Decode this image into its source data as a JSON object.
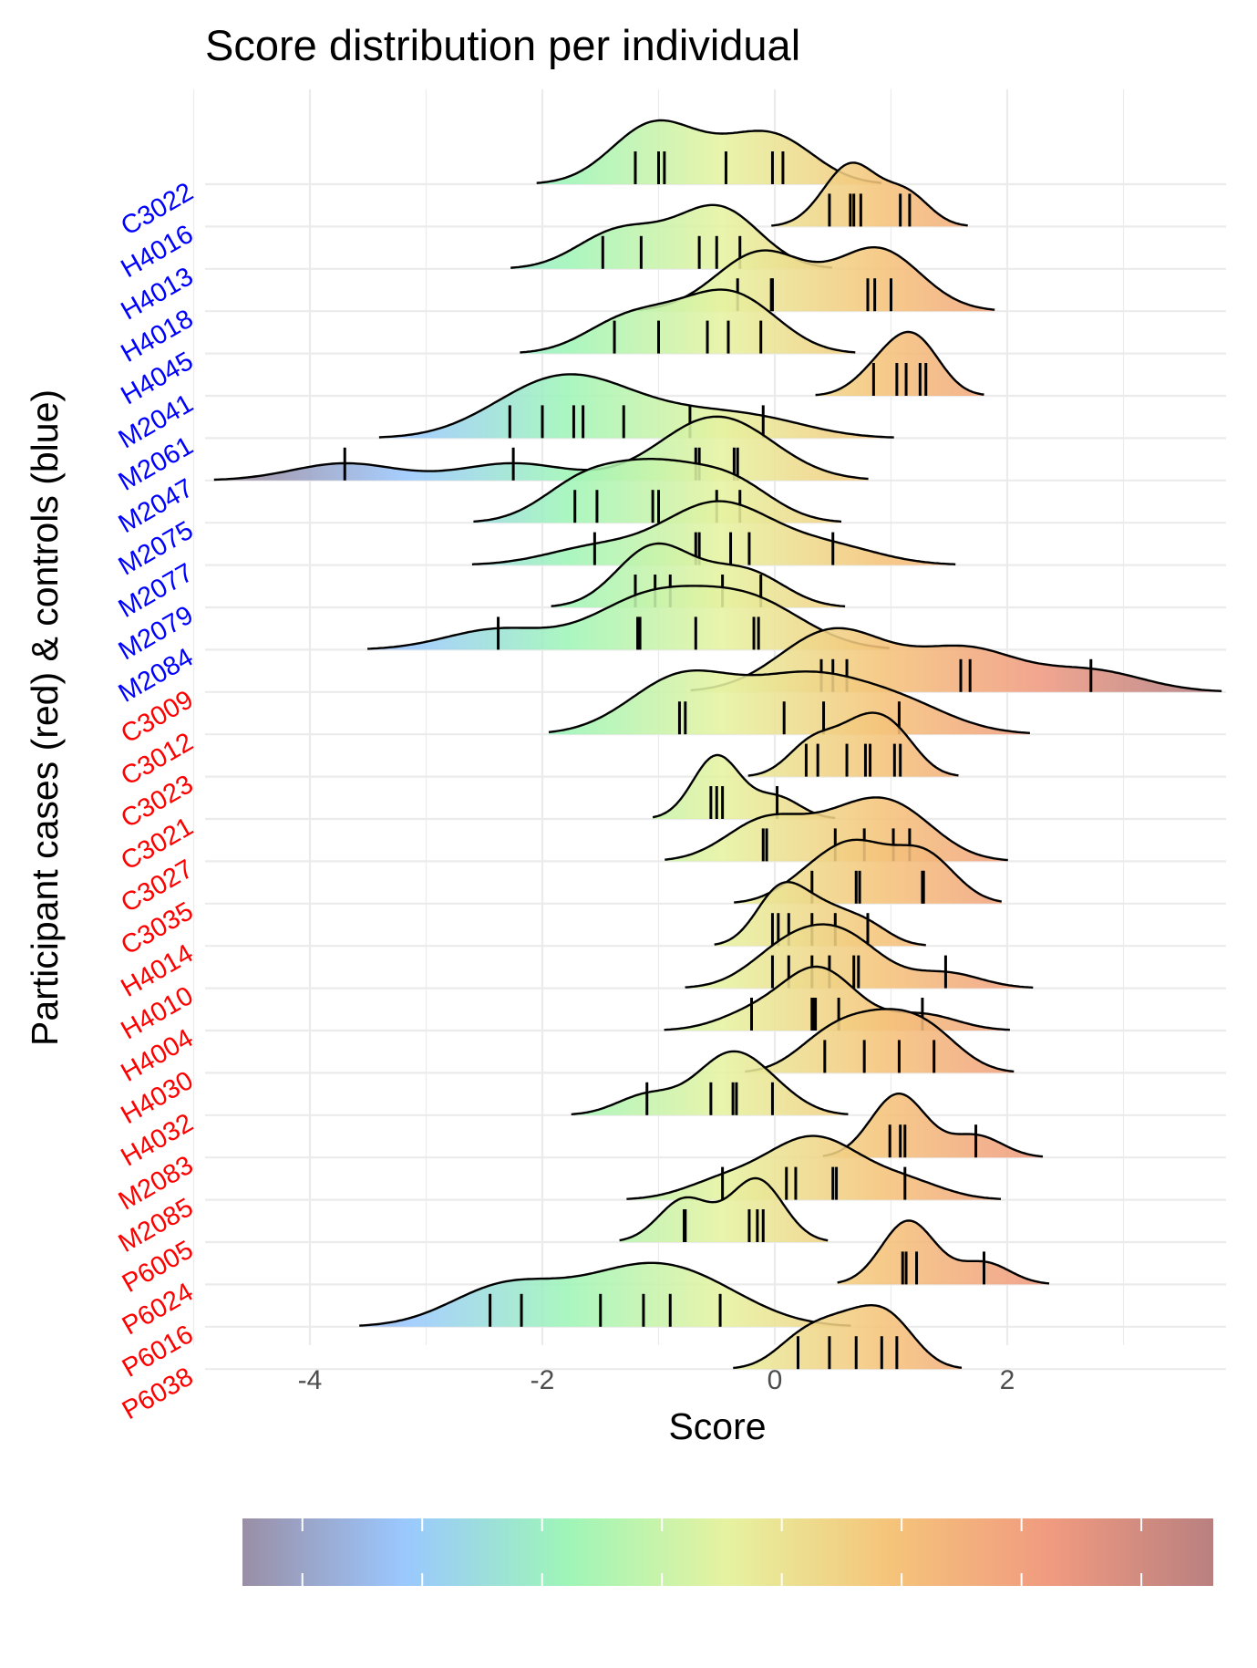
{
  "chart_data": {
    "type": "ridgeline",
    "title": "Score distribution per individual",
    "xlabel": "Score",
    "ylabel": "Participant cases (red) & controls (blue)",
    "xlim": [
      -5.0,
      3.9
    ],
    "x_ticks": [
      -4,
      -2,
      0,
      2
    ],
    "x_tick_labels": [
      "-4",
      "-2",
      "0",
      "2"
    ],
    "grid": true,
    "legend": "bottom colorbar (no labels)",
    "colors": {
      "case_label": "#ff0000",
      "control_label": "#0000ff",
      "gradient": [
        "#9a8ea6",
        "#9ac8ff",
        "#9ef5b8",
        "#e6f2a0",
        "#f5c47a",
        "#f09a80",
        "#b98080"
      ]
    },
    "colorbar_range": [
      -4.5,
      3.6
    ],
    "series": [
      {
        "name": "C3022",
        "group": "control",
        "values": [
          -1.2,
          -1.0,
          -0.95,
          -0.42,
          -0.02,
          0.07
        ]
      },
      {
        "name": "H4016",
        "group": "control",
        "values": [
          0.47,
          0.65,
          0.68,
          0.74,
          1.08,
          1.16
        ]
      },
      {
        "name": "H4013",
        "group": "control",
        "values": [
          -1.48,
          -1.15,
          -0.65,
          -0.5,
          -0.3
        ]
      },
      {
        "name": "H4018",
        "group": "control",
        "values": [
          -0.32,
          -0.03,
          -0.02,
          0.8,
          0.86,
          1.0
        ]
      },
      {
        "name": "H4045",
        "group": "control",
        "values": [
          -1.38,
          -1.0,
          -0.58,
          -0.4,
          -0.12
        ]
      },
      {
        "name": "M2041",
        "group": "control",
        "values": [
          0.85,
          1.05,
          1.13,
          1.25,
          1.3
        ]
      },
      {
        "name": "M2061",
        "group": "control",
        "values": [
          -2.28,
          -2.0,
          -1.73,
          -1.65,
          -1.3,
          -0.73,
          -0.1
        ]
      },
      {
        "name": "M2047",
        "group": "control",
        "values": [
          -3.7,
          -2.25,
          -0.68,
          -0.65,
          -0.35,
          -0.32
        ]
      },
      {
        "name": "M2075",
        "group": "control",
        "values": [
          -1.72,
          -1.53,
          -1.05,
          -1.0,
          -0.5,
          -0.3
        ]
      },
      {
        "name": "M2077",
        "group": "control",
        "values": [
          -1.55,
          -0.68,
          -0.65,
          -0.38,
          -0.22,
          0.5
        ]
      },
      {
        "name": "M2079",
        "group": "control",
        "values": [
          -1.2,
          -1.03,
          -0.9,
          -0.45,
          -0.12
        ]
      },
      {
        "name": "M2084",
        "group": "control",
        "values": [
          -2.38,
          -1.18,
          -1.16,
          -0.68,
          -0.18,
          -0.14
        ]
      },
      {
        "name": "C3009",
        "group": "case",
        "values": [
          0.4,
          0.5,
          0.62,
          1.6,
          1.68,
          2.72
        ]
      },
      {
        "name": "C3012",
        "group": "case",
        "values": [
          -0.82,
          -0.77,
          0.08,
          0.42,
          1.07
        ]
      },
      {
        "name": "C3023",
        "group": "case",
        "values": [
          0.27,
          0.37,
          0.62,
          0.78,
          0.82,
          1.03,
          1.08
        ]
      },
      {
        "name": "C3021",
        "group": "case",
        "values": [
          -0.55,
          -0.5,
          -0.45,
          0.02
        ]
      },
      {
        "name": "C3027",
        "group": "case",
        "values": [
          -0.1,
          -0.07,
          0.52,
          0.77,
          1.02,
          1.16
        ]
      },
      {
        "name": "C3035",
        "group": "case",
        "values": [
          0.32,
          0.7,
          0.73,
          1.27,
          1.28
        ]
      },
      {
        "name": "H4014",
        "group": "case",
        "values": [
          -0.02,
          0.03,
          0.12,
          0.32,
          0.52,
          0.8
        ]
      },
      {
        "name": "H4010",
        "group": "case",
        "values": [
          -0.02,
          0.12,
          0.32,
          0.47,
          0.68,
          0.72,
          1.47
        ]
      },
      {
        "name": "H4004",
        "group": "case",
        "values": [
          -0.2,
          0.32,
          0.33,
          0.35,
          0.55,
          1.27
        ]
      },
      {
        "name": "H4030",
        "group": "case",
        "values": [
          0.43,
          0.77,
          1.07,
          1.37
        ]
      },
      {
        "name": "H4032",
        "group": "case",
        "values": [
          -1.1,
          -0.55,
          -0.36,
          -0.33,
          -0.02
        ]
      },
      {
        "name": "M2083",
        "group": "case",
        "values": [
          0.99,
          1.08,
          1.12,
          1.73
        ]
      },
      {
        "name": "M2085",
        "group": "case",
        "values": [
          -0.45,
          0.1,
          0.18,
          0.5,
          0.53,
          1.12
        ]
      },
      {
        "name": "P6005",
        "group": "case",
        "values": [
          -0.78,
          -0.77,
          -0.22,
          -0.15,
          -0.1
        ]
      },
      {
        "name": "P6024",
        "group": "case",
        "values": [
          1.1,
          1.13,
          1.22,
          1.8
        ]
      },
      {
        "name": "P6016",
        "group": "case",
        "values": [
          -2.45,
          -2.18,
          -1.5,
          -1.13,
          -0.9,
          -0.47
        ]
      },
      {
        "name": "P6038",
        "group": "case",
        "values": [
          0.2,
          0.47,
          0.7,
          0.92,
          1.05
        ]
      }
    ]
  }
}
